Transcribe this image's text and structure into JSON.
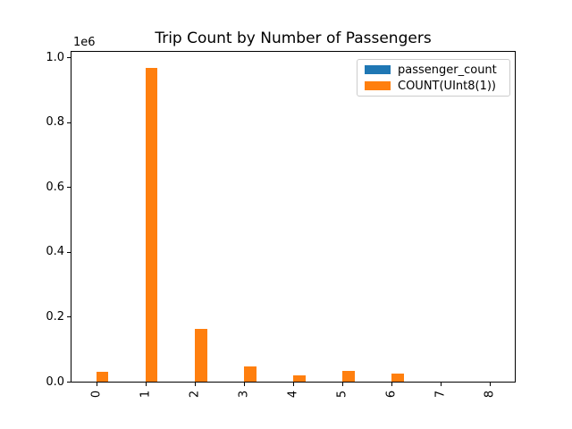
{
  "chart_data": {
    "type": "bar",
    "title": "Trip Count by Number of Passengers",
    "xlabel": "",
    "ylabel": "",
    "categories": [
      "0",
      "1",
      "2",
      "3",
      "4",
      "5",
      "6",
      "7",
      "8"
    ],
    "series": [
      {
        "name": "passenger_count",
        "color": "#1f77b4",
        "values": [
          0,
          1,
          2,
          3,
          4,
          5,
          6,
          7,
          8
        ]
      },
      {
        "name": "COUNT(UInt8(1))",
        "color": "#ff7f0e",
        "values": [
          29000,
          969000,
          164000,
          46000,
          20000,
          32000,
          26000,
          0,
          0
        ]
      }
    ],
    "ylim": [
      0,
      1017450
    ],
    "yticks": [
      0,
      200000,
      400000,
      600000,
      800000,
      1000000
    ],
    "ytick_labels": [
      "0.0",
      "0.2",
      "0.4",
      "0.6",
      "0.8",
      "1.0"
    ],
    "y_offset_label": "1e6",
    "xtick_rotation": 90,
    "grid": false,
    "legend_position": "upper right",
    "background_color": "#ffffff",
    "spine_color": "#000000",
    "legend_border_color": "#cccccc"
  },
  "legend": {
    "entries": [
      {
        "label": "passenger_count",
        "color": "#1f77b4"
      },
      {
        "label": "COUNT(UInt8(1))",
        "color": "#ff7f0e"
      }
    ]
  }
}
